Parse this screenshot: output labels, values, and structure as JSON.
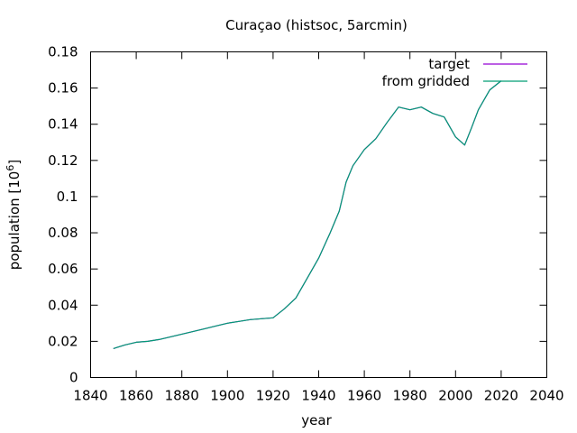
{
  "chart_data": {
    "type": "line",
    "title": "Curaçao (histsoc, 5arcmin)",
    "xlabel": "year",
    "ylabel_main": "population [10",
    "ylabel_sup": "6",
    "ylabel_end": "]",
    "xlim": [
      1840,
      2040
    ],
    "ylim": [
      0,
      0.18
    ],
    "xticks": [
      1840,
      1860,
      1880,
      1900,
      1920,
      1940,
      1960,
      1980,
      2000,
      2020,
      2040
    ],
    "yticks": [
      "0",
      "0.02",
      "0.04",
      "0.06",
      "0.08",
      "0.1",
      "0.12",
      "0.14",
      "0.16",
      "0.18"
    ],
    "yticks_values": [
      0,
      0.02,
      0.04,
      0.06,
      0.08,
      0.1,
      0.12,
      0.14,
      0.16,
      0.18
    ],
    "grid": false,
    "legend_position": "top-right",
    "series": [
      {
        "name": "target",
        "color": "#9400d3",
        "x": [
          1850,
          1855,
          1860,
          1865,
          1870,
          1875,
          1880,
          1885,
          1890,
          1895,
          1900,
          1905,
          1910,
          1915,
          1920,
          1925,
          1930,
          1935,
          1940,
          1945,
          1949,
          1952,
          1955,
          1960,
          1965,
          1970,
          1975,
          1980,
          1985,
          1990,
          1995,
          2000,
          2004,
          2007,
          2010,
          2015,
          2020
        ],
        "y": [
          0.016,
          0.018,
          0.0195,
          0.02,
          0.021,
          0.0225,
          0.024,
          0.0255,
          0.027,
          0.0285,
          0.03,
          0.031,
          0.032,
          0.0325,
          0.033,
          0.038,
          0.044,
          0.055,
          0.066,
          0.08,
          0.092,
          0.108,
          0.117,
          0.126,
          0.132,
          0.141,
          0.1495,
          0.148,
          0.1495,
          0.146,
          0.144,
          0.133,
          0.1285,
          0.138,
          0.148,
          0.159,
          0.164
        ]
      },
      {
        "name": "from gridded",
        "color": "#009e73",
        "x": [
          1850,
          1855,
          1860,
          1865,
          1870,
          1875,
          1880,
          1885,
          1890,
          1895,
          1900,
          1905,
          1910,
          1915,
          1920,
          1925,
          1930,
          1935,
          1940,
          1945,
          1949,
          1952,
          1955,
          1960,
          1965,
          1970,
          1975,
          1980,
          1985,
          1990,
          1995,
          2000,
          2004,
          2007,
          2010,
          2015,
          2020
        ],
        "y": [
          0.016,
          0.018,
          0.0195,
          0.02,
          0.021,
          0.0225,
          0.024,
          0.0255,
          0.027,
          0.0285,
          0.03,
          0.031,
          0.032,
          0.0325,
          0.033,
          0.038,
          0.044,
          0.055,
          0.066,
          0.08,
          0.092,
          0.108,
          0.117,
          0.126,
          0.132,
          0.141,
          0.1495,
          0.148,
          0.1495,
          0.146,
          0.144,
          0.133,
          0.1285,
          0.138,
          0.148,
          0.159,
          0.164
        ]
      }
    ]
  }
}
